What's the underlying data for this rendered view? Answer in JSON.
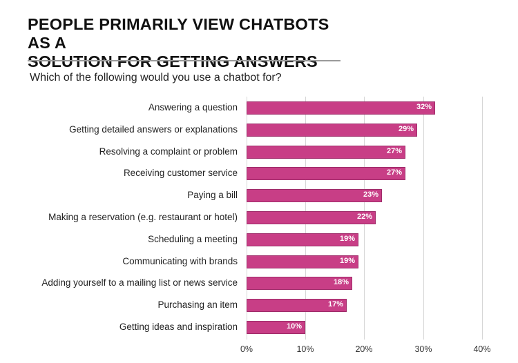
{
  "title_line1": "PEOPLE PRIMARILY VIEW CHATBOTS AS A",
  "title_line2": "SOLUTION FOR GETTING ANSWERS",
  "subtitle": "Which of the following would you use a chatbot for?",
  "colors": {
    "bar": "#c83e86",
    "bar_border": "#9e2b69",
    "gridline": "#d6d6d6",
    "rule": "#9a9a9a"
  },
  "axis_ticks": [
    "0%",
    "10%",
    "20%",
    "30%",
    "40%"
  ],
  "rows": [
    {
      "label": "Answering a question",
      "value": "32%"
    },
    {
      "label": "Getting detailed answers or explanations",
      "value": "29%"
    },
    {
      "label": "Resolving a complaint or problem",
      "value": "27%"
    },
    {
      "label": "Receiving customer service",
      "value": "27%"
    },
    {
      "label": "Paying a bill",
      "value": "23%"
    },
    {
      "label": "Making a reservation (e.g. restaurant or hotel)",
      "value": "22%"
    },
    {
      "label": "Scheduling a meeting",
      "value": "19%"
    },
    {
      "label": "Communicating with brands",
      "value": "19%"
    },
    {
      "label": "Adding yourself to a mailing list or news service",
      "value": "18%"
    },
    {
      "label": "Purchasing an item",
      "value": "17%"
    },
    {
      "label": "Getting ideas and inspiration",
      "value": "10%"
    }
  ],
  "chart_data": {
    "type": "bar",
    "orientation": "horizontal",
    "title": "PEOPLE PRIMARILY VIEW CHATBOTS AS A SOLUTION FOR GETTING ANSWERS",
    "subtitle": "Which of the following would you use a chatbot for?",
    "categories": [
      "Answering a question",
      "Getting detailed answers or explanations",
      "Resolving a complaint or problem",
      "Receiving customer service",
      "Paying a bill",
      "Making a reservation (e.g. restaurant or hotel)",
      "Scheduling a meeting",
      "Communicating with brands",
      "Adding yourself to a mailing list or news service",
      "Purchasing an item",
      "Getting ideas and inspiration"
    ],
    "values": [
      32,
      29,
      27,
      27,
      23,
      22,
      19,
      19,
      18,
      17,
      10
    ],
    "value_labels": [
      "32%",
      "29%",
      "27%",
      "27%",
      "23%",
      "22%",
      "19%",
      "19%",
      "18%",
      "17%",
      "10%"
    ],
    "xlabel": "",
    "ylabel": "",
    "xlim": [
      0,
      40
    ],
    "x_ticks": [
      "0%",
      "10%",
      "20%",
      "30%",
      "40%"
    ],
    "grid": "vertical",
    "legend": "none",
    "color": "#c83e86"
  }
}
